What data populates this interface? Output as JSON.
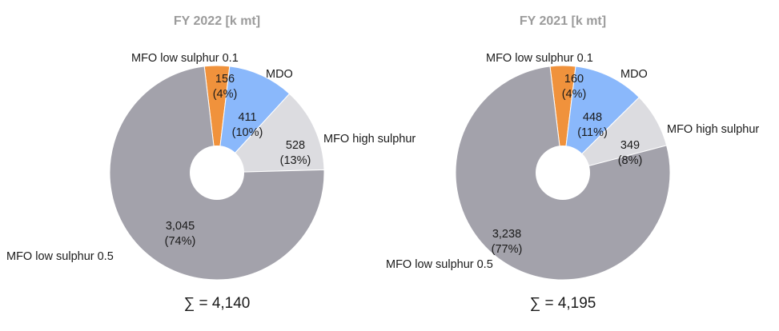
{
  "chart_data": [
    {
      "type": "pie",
      "title": "FY 2022 [k mt]",
      "total_label": "∑ = 4,140",
      "slices": [
        {
          "name": "MFO low sulphur 0.1",
          "value": 156,
          "value_label": "156",
          "pct_label": "(4%)",
          "color": "#f0923c"
        },
        {
          "name": "MDO",
          "value": 411,
          "value_label": "411",
          "pct_label": "(10%)",
          "color": "#8ab8fb"
        },
        {
          "name": "MFO high sulphur",
          "value": 528,
          "value_label": "528",
          "pct_label": "(13%)",
          "color": "#dcdce0"
        },
        {
          "name": "MFO low sulphur 0.5",
          "value": 3045,
          "value_label": "3,045",
          "pct_label": "(74%)",
          "color": "#a3a2ab"
        }
      ]
    },
    {
      "type": "pie",
      "title": "FY 2021 [k mt]",
      "total_label": "∑ = 4,195",
      "slices": [
        {
          "name": "MFO low sulphur 0.1",
          "value": 160,
          "value_label": "160",
          "pct_label": "(4%)",
          "color": "#f0923c"
        },
        {
          "name": "MDO",
          "value": 448,
          "value_label": "448",
          "pct_label": "(11%)",
          "color": "#8ab8fb"
        },
        {
          "name": "MFO high sulphur",
          "value": 349,
          "value_label": "349",
          "pct_label": "(8%)",
          "color": "#dcdce0"
        },
        {
          "name": "MFO low sulphur 0.5",
          "value": 3238,
          "value_label": "3,238",
          "pct_label": "(77%)",
          "color": "#a3a2ab"
        }
      ]
    }
  ]
}
